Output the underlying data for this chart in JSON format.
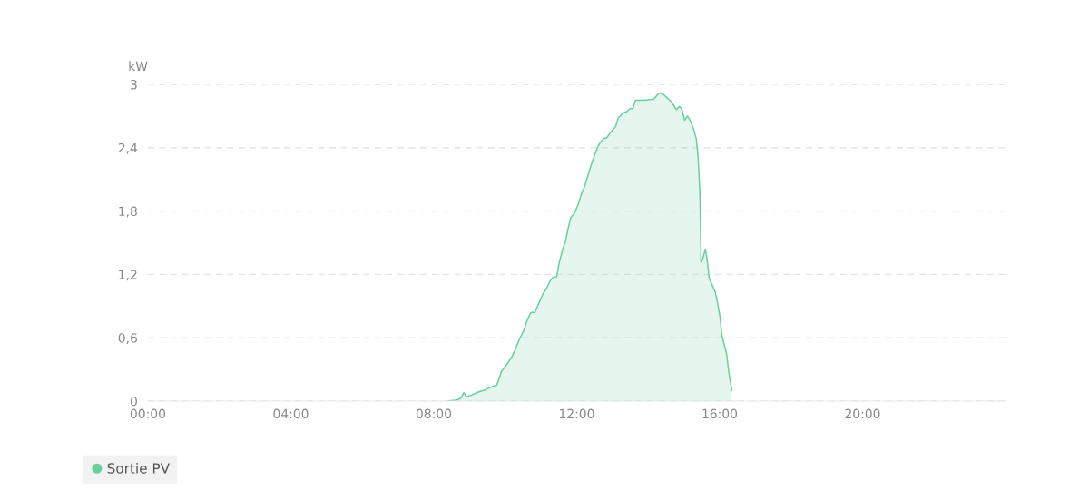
{
  "chart_data": {
    "type": "area",
    "ylabel": "kW",
    "x": [
      8.39,
      8.64,
      8.77,
      8.84,
      8.92,
      9.07,
      9.28,
      9.4,
      9.58,
      9.76,
      9.83,
      9.89,
      10.01,
      10.17,
      10.27,
      10.39,
      10.52,
      10.62,
      10.72,
      10.83,
      10.93,
      11.05,
      11.16,
      11.26,
      11.33,
      11.44,
      11.51,
      11.61,
      11.69,
      11.77,
      11.84,
      11.94,
      12.05,
      12.12,
      12.22,
      12.3,
      12.4,
      12.48,
      12.58,
      12.66,
      12.76,
      12.83,
      12.96,
      13.09,
      13.16,
      13.29,
      13.39,
      13.49,
      13.57,
      13.65,
      13.75,
      13.9,
      14.16,
      14.28,
      14.33,
      14.41,
      14.54,
      14.66,
      14.79,
      14.87,
      14.94,
      15.02,
      15.1,
      15.17,
      15.27,
      15.35,
      15.4,
      15.45,
      15.48,
      15.53,
      15.6,
      15.65,
      15.71,
      15.78,
      15.88,
      15.93,
      16.01,
      16.06,
      16.14,
      16.19,
      16.26,
      16.34
    ],
    "series": [
      {
        "name": "Sortie PV",
        "color": "#6ccf9e",
        "values": [
          0,
          0.01,
          0.03,
          0.08,
          0.04,
          0.06,
          0.09,
          0.1,
          0.13,
          0.15,
          0.21,
          0.28,
          0.33,
          0.41,
          0.48,
          0.58,
          0.67,
          0.77,
          0.84,
          0.84,
          0.92,
          1.01,
          1.07,
          1.14,
          1.17,
          1.18,
          1.31,
          1.44,
          1.52,
          1.65,
          1.74,
          1.78,
          1.87,
          1.95,
          2.03,
          2.12,
          2.23,
          2.31,
          2.4,
          2.45,
          2.49,
          2.49,
          2.55,
          2.6,
          2.68,
          2.73,
          2.74,
          2.77,
          2.77,
          2.85,
          2.85,
          2.85,
          2.86,
          2.91,
          2.92,
          2.91,
          2.87,
          2.83,
          2.76,
          2.79,
          2.77,
          2.66,
          2.7,
          2.66,
          2.58,
          2.48,
          2.3,
          1.95,
          1.31,
          1.35,
          1.44,
          1.34,
          1.16,
          1.11,
          1.03,
          0.95,
          0.8,
          0.63,
          0.52,
          0.46,
          0.27,
          0.1
        ]
      }
    ],
    "xlim": [
      0,
      24
    ],
    "xticks": [
      {
        "value": 0,
        "label": "00:00"
      },
      {
        "value": 4,
        "label": "04:00"
      },
      {
        "value": 8,
        "label": "08:00"
      },
      {
        "value": 12,
        "label": "12:00"
      },
      {
        "value": 16,
        "label": "16:00"
      },
      {
        "value": 20,
        "label": "20:00"
      }
    ],
    "ylim": [
      0,
      3
    ],
    "yticks": [
      0,
      {
        "value": 0.6,
        "label": "0,6"
      },
      {
        "value": 1.2,
        "label": "1,2"
      },
      {
        "value": 1.8,
        "label": "1,8"
      },
      {
        "value": 2.4,
        "label": "2,4"
      },
      3
    ],
    "grid": "y",
    "legend": "bottom left"
  }
}
